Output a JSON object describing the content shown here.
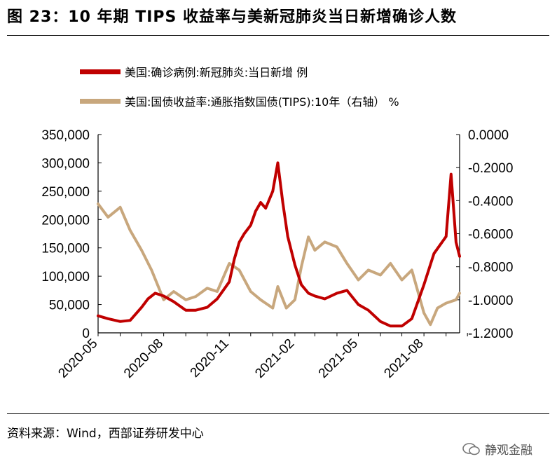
{
  "figure": {
    "title": "图 23：10 年期 TIPS 收益率与美新冠肺炎当日新增确诊人数",
    "source": "资料来源：Wind，西部证券研发中心",
    "watermark": "静观金融"
  },
  "chart_data": {
    "type": "line",
    "legend_position": "top",
    "grid": false,
    "x_tick_labels": [
      "2020-05",
      "2020-08",
      "2020-11",
      "2021-02",
      "2021-05",
      "2021-08"
    ],
    "y_left": {
      "ylim": [
        0,
        350000
      ],
      "ticks": [
        "0",
        "50,000",
        "100,000",
        "150,000",
        "200,000",
        "250,000",
        "300,000",
        "350,000"
      ]
    },
    "y_right": {
      "ylim": [
        -1.2,
        0
      ],
      "ticks": [
        "0.0000",
        "-0.2000",
        "-0.4000",
        "-0.6000",
        "-0.8000",
        "-1.0000",
        "-1.2000"
      ]
    },
    "series": [
      {
        "name": "美国:确诊病例:新冠肺炎:当日新增 例",
        "axis": "left",
        "color": "#c00000",
        "x": [
          "2020-05-01",
          "2020-05-15",
          "2020-06-01",
          "2020-06-15",
          "2020-07-01",
          "2020-07-10",
          "2020-07-20",
          "2020-08-01",
          "2020-08-15",
          "2020-09-01",
          "2020-09-15",
          "2020-10-01",
          "2020-10-15",
          "2020-11-01",
          "2020-11-08",
          "2020-11-15",
          "2020-11-22",
          "2020-12-01",
          "2020-12-08",
          "2020-12-15",
          "2020-12-22",
          "2021-01-01",
          "2021-01-08",
          "2021-01-15",
          "2021-01-22",
          "2021-02-01",
          "2021-02-10",
          "2021-02-20",
          "2021-03-01",
          "2021-03-15",
          "2021-04-01",
          "2021-04-15",
          "2021-05-01",
          "2021-05-15",
          "2021-06-01",
          "2021-06-15",
          "2021-07-01",
          "2021-07-15",
          "2021-08-01",
          "2021-08-15",
          "2021-09-01",
          "2021-09-08",
          "2021-09-15",
          "2021-09-20"
        ],
        "values": [
          30000,
          25000,
          20000,
          22000,
          45000,
          60000,
          70000,
          65000,
          55000,
          40000,
          40000,
          45000,
          60000,
          90000,
          130000,
          160000,
          175000,
          190000,
          215000,
          230000,
          220000,
          250000,
          300000,
          230000,
          170000,
          120000,
          85000,
          70000,
          65000,
          60000,
          70000,
          75000,
          50000,
          40000,
          20000,
          12000,
          12000,
          25000,
          85000,
          140000,
          170000,
          280000,
          160000,
          135000
        ]
      },
      {
        "name": "美国:国债收益率:通胀指数国债(TIPS):10年（右轴） %",
        "axis": "right",
        "color": "#c8a77d",
        "x": [
          "2020-05-01",
          "2020-05-15",
          "2020-06-01",
          "2020-06-15",
          "2020-07-01",
          "2020-07-15",
          "2020-08-01",
          "2020-08-15",
          "2020-09-01",
          "2020-09-15",
          "2020-10-01",
          "2020-10-15",
          "2020-11-01",
          "2020-11-15",
          "2020-12-01",
          "2020-12-15",
          "2021-01-01",
          "2021-01-08",
          "2021-01-20",
          "2021-02-01",
          "2021-02-10",
          "2021-02-20",
          "2021-03-01",
          "2021-03-15",
          "2021-04-01",
          "2021-04-15",
          "2021-05-01",
          "2021-05-15",
          "2021-06-01",
          "2021-06-15",
          "2021-07-01",
          "2021-07-15",
          "2021-08-01",
          "2021-08-10",
          "2021-08-20",
          "2021-09-01",
          "2021-09-15",
          "2021-09-20"
        ],
        "values": [
          -0.42,
          -0.5,
          -0.44,
          -0.58,
          -0.7,
          -0.82,
          -1.0,
          -0.95,
          -1.0,
          -0.98,
          -0.93,
          -0.95,
          -0.78,
          -0.82,
          -0.95,
          -1.0,
          -1.05,
          -0.92,
          -1.05,
          -1.0,
          -0.8,
          -0.62,
          -0.7,
          -0.65,
          -0.68,
          -0.78,
          -0.88,
          -0.82,
          -0.85,
          -0.78,
          -0.88,
          -0.82,
          -1.08,
          -1.15,
          -1.05,
          -1.02,
          -1.0,
          -0.96
        ]
      }
    ]
  }
}
